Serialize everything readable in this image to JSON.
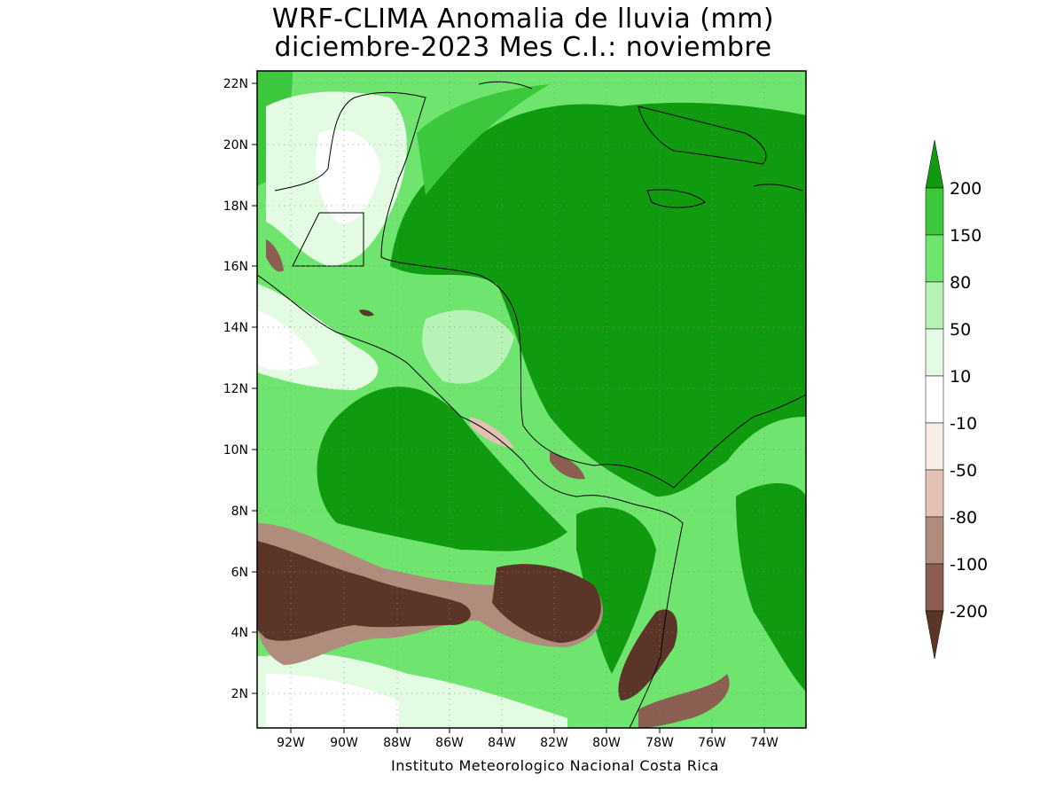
{
  "title": {
    "line1": "WRF-CLIMA Anomalia de lluvia (mm)",
    "line2": "diciembre-2023 Mes C.I.: noviembre"
  },
  "map": {
    "lon_range": [
      -93.2,
      -72.3
    ],
    "lat_range": [
      0.9,
      22.4
    ],
    "lat_ticks": [
      "22N",
      "20N",
      "18N",
      "16N",
      "14N",
      "12N",
      "10N",
      "8N",
      "6N",
      "4N",
      "2N"
    ],
    "lon_ticks": [
      "92W",
      "90W",
      "88W",
      "86W",
      "84W",
      "82W",
      "80W",
      "78W",
      "76W",
      "74W"
    ],
    "credit": "Instituto Meteorologico Nacional Costa Rica"
  },
  "colorbar": {
    "levels": [
      "200",
      "150",
      "80",
      "50",
      "10",
      "-10",
      "-50",
      "-80",
      "-100",
      "-200"
    ],
    "colors": {
      "gt200": "#0f9a0f",
      "150_200": "#3cc83c",
      "80_150": "#6fe56f",
      "50_80": "#b7f3b7",
      "10_50": "#e2fbe2",
      "m10_10": "#ffffff",
      "m50_m10": "#f8ede3",
      "m80_m50": "#e3c2b5",
      "m100_m80": "#b08c7d",
      "m200_m100": "#8a5f52",
      "lt_m200": "#5c3529"
    }
  }
}
